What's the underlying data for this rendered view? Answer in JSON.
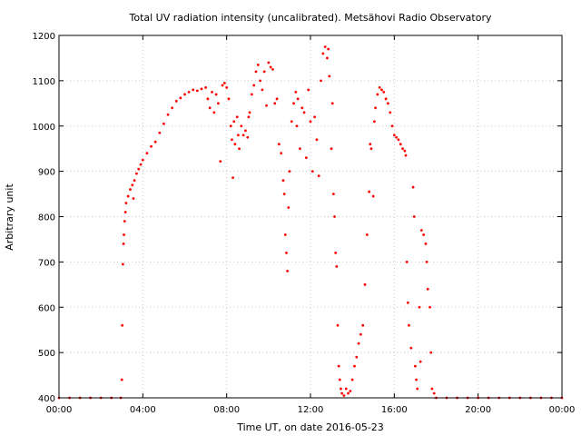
{
  "chart_data": {
    "type": "scatter",
    "title": "Total UV radiation intensity (uncalibrated). Metsähovi Radio Observatory",
    "xlabel": "Time UT, on date 2016-05-23",
    "ylabel": "Arbitrary unit",
    "xlim": [
      0,
      24
    ],
    "ylim": [
      400,
      1200
    ],
    "x_ticks": [
      {
        "value": 0,
        "label": "00:00"
      },
      {
        "value": 4,
        "label": "04:00"
      },
      {
        "value": 8,
        "label": "08:00"
      },
      {
        "value": 12,
        "label": "12:00"
      },
      {
        "value": 16,
        "label": "16:00"
      },
      {
        "value": 20,
        "label": "20:00"
      },
      {
        "value": 24,
        "label": "00:00"
      }
    ],
    "y_ticks": [
      {
        "value": 400,
        "label": "400"
      },
      {
        "value": 500,
        "label": "500"
      },
      {
        "value": 600,
        "label": "600"
      },
      {
        "value": 700,
        "label": "700"
      },
      {
        "value": 800,
        "label": "800"
      },
      {
        "value": 900,
        "label": "900"
      },
      {
        "value": 1000,
        "label": "1000"
      },
      {
        "value": 1100,
        "label": "1100"
      },
      {
        "value": 1200,
        "label": "1200"
      }
    ],
    "grid": true,
    "marker_color": "#ff0000",
    "series": [
      {
        "points": [
          [
            0.0,
            400
          ],
          [
            0.5,
            400
          ],
          [
            1.0,
            400
          ],
          [
            1.5,
            400
          ],
          [
            2.0,
            400
          ],
          [
            2.5,
            400
          ],
          [
            2.95,
            400
          ],
          [
            3.0,
            440
          ],
          [
            3.02,
            560
          ],
          [
            3.05,
            695
          ],
          [
            3.08,
            740
          ],
          [
            3.1,
            760
          ],
          [
            3.13,
            790
          ],
          [
            3.17,
            810
          ],
          [
            3.2,
            830
          ],
          [
            3.3,
            845
          ],
          [
            3.4,
            860
          ],
          [
            3.5,
            870
          ],
          [
            3.55,
            840
          ],
          [
            3.6,
            880
          ],
          [
            3.7,
            895
          ],
          [
            3.8,
            905
          ],
          [
            3.9,
            915
          ],
          [
            4.0,
            925
          ],
          [
            4.2,
            940
          ],
          [
            4.4,
            955
          ],
          [
            4.6,
            965
          ],
          [
            4.8,
            985
          ],
          [
            5.0,
            1005
          ],
          [
            5.2,
            1025
          ],
          [
            5.4,
            1040
          ],
          [
            5.6,
            1055
          ],
          [
            5.8,
            1062
          ],
          [
            6.0,
            1070
          ],
          [
            6.2,
            1075
          ],
          [
            6.4,
            1080
          ],
          [
            6.6,
            1078
          ],
          [
            6.8,
            1082
          ],
          [
            7.0,
            1085
          ],
          [
            7.1,
            1060
          ],
          [
            7.2,
            1040
          ],
          [
            7.3,
            1075
          ],
          [
            7.4,
            1030
          ],
          [
            7.5,
            1070
          ],
          [
            7.6,
            1050
          ],
          [
            7.7,
            922
          ],
          [
            7.8,
            1090
          ],
          [
            7.9,
            1095
          ],
          [
            8.0,
            1085
          ],
          [
            8.1,
            1060
          ],
          [
            8.2,
            1000
          ],
          [
            8.25,
            970
          ],
          [
            8.3,
            886
          ],
          [
            8.35,
            1010
          ],
          [
            8.4,
            960
          ],
          [
            8.5,
            1020
          ],
          [
            8.55,
            980
          ],
          [
            8.6,
            950
          ],
          [
            8.7,
            1000
          ],
          [
            8.8,
            980
          ],
          [
            8.9,
            990
          ],
          [
            9.0,
            975
          ],
          [
            9.05,
            1020
          ],
          [
            9.1,
            1030
          ],
          [
            9.2,
            1070
          ],
          [
            9.3,
            1090
          ],
          [
            9.4,
            1120
          ],
          [
            9.5,
            1135
          ],
          [
            9.6,
            1100
          ],
          [
            9.7,
            1080
          ],
          [
            9.8,
            1120
          ],
          [
            9.9,
            1045
          ],
          [
            10.0,
            1140
          ],
          [
            10.1,
            1130
          ],
          [
            10.2,
            1125
          ],
          [
            10.3,
            1050
          ],
          [
            10.4,
            1060
          ],
          [
            10.5,
            960
          ],
          [
            10.6,
            940
          ],
          [
            10.7,
            880
          ],
          [
            10.75,
            850
          ],
          [
            10.8,
            760
          ],
          [
            10.85,
            720
          ],
          [
            10.9,
            680
          ],
          [
            10.95,
            820
          ],
          [
            11.0,
            900
          ],
          [
            11.1,
            1010
          ],
          [
            11.2,
            1050
          ],
          [
            11.3,
            1075
          ],
          [
            11.35,
            1000
          ],
          [
            11.4,
            1060
          ],
          [
            11.5,
            950
          ],
          [
            11.6,
            1040
          ],
          [
            11.7,
            1030
          ],
          [
            11.8,
            930
          ],
          [
            11.9,
            1080
          ],
          [
            12.0,
            1010
          ],
          [
            12.1,
            900
          ],
          [
            12.2,
            1020
          ],
          [
            12.3,
            970
          ],
          [
            12.4,
            890
          ],
          [
            12.5,
            1100
          ],
          [
            12.6,
            1160
          ],
          [
            12.7,
            1175
          ],
          [
            12.8,
            1150
          ],
          [
            12.85,
            1170
          ],
          [
            12.9,
            1110
          ],
          [
            13.0,
            950
          ],
          [
            13.05,
            1050
          ],
          [
            13.1,
            850
          ],
          [
            13.15,
            800
          ],
          [
            13.2,
            720
          ],
          [
            13.25,
            690
          ],
          [
            13.3,
            560
          ],
          [
            13.35,
            470
          ],
          [
            13.4,
            440
          ],
          [
            13.45,
            420
          ],
          [
            13.5,
            410
          ],
          [
            13.6,
            405
          ],
          [
            13.7,
            420
          ],
          [
            13.8,
            410
          ],
          [
            13.9,
            415
          ],
          [
            14.0,
            440
          ],
          [
            14.1,
            470
          ],
          [
            14.2,
            490
          ],
          [
            14.3,
            520
          ],
          [
            14.4,
            540
          ],
          [
            14.5,
            560
          ],
          [
            14.6,
            650
          ],
          [
            14.7,
            760
          ],
          [
            14.8,
            855
          ],
          [
            14.85,
            960
          ],
          [
            14.9,
            950
          ],
          [
            15.0,
            845
          ],
          [
            15.05,
            1010
          ],
          [
            15.1,
            1040
          ],
          [
            15.2,
            1070
          ],
          [
            15.3,
            1085
          ],
          [
            15.4,
            1080
          ],
          [
            15.5,
            1075
          ],
          [
            15.6,
            1060
          ],
          [
            15.7,
            1050
          ],
          [
            15.8,
            1030
          ],
          [
            15.9,
            1000
          ],
          [
            16.0,
            980
          ],
          [
            16.1,
            975
          ],
          [
            16.2,
            970
          ],
          [
            16.3,
            960
          ],
          [
            16.4,
            950
          ],
          [
            16.5,
            945
          ],
          [
            16.55,
            935
          ],
          [
            16.6,
            700
          ],
          [
            16.65,
            610
          ],
          [
            16.7,
            560
          ],
          [
            16.8,
            510
          ],
          [
            16.9,
            865
          ],
          [
            16.95,
            800
          ],
          [
            17.0,
            470
          ],
          [
            17.05,
            440
          ],
          [
            17.1,
            420
          ],
          [
            17.2,
            600
          ],
          [
            17.25,
            480
          ],
          [
            17.3,
            770
          ],
          [
            17.4,
            760
          ],
          [
            17.5,
            740
          ],
          [
            17.55,
            700
          ],
          [
            17.6,
            640
          ],
          [
            17.7,
            600
          ],
          [
            17.75,
            500
          ],
          [
            17.8,
            420
          ],
          [
            17.9,
            410
          ],
          [
            18.0,
            400
          ],
          [
            18.5,
            400
          ],
          [
            19.0,
            400
          ],
          [
            19.5,
            400
          ],
          [
            20.0,
            400
          ],
          [
            20.5,
            400
          ],
          [
            21.0,
            400
          ],
          [
            21.5,
            400
          ],
          [
            22.0,
            400
          ],
          [
            22.5,
            400
          ],
          [
            23.0,
            400
          ],
          [
            23.5,
            400
          ],
          [
            24.0,
            400
          ]
        ]
      }
    ]
  }
}
